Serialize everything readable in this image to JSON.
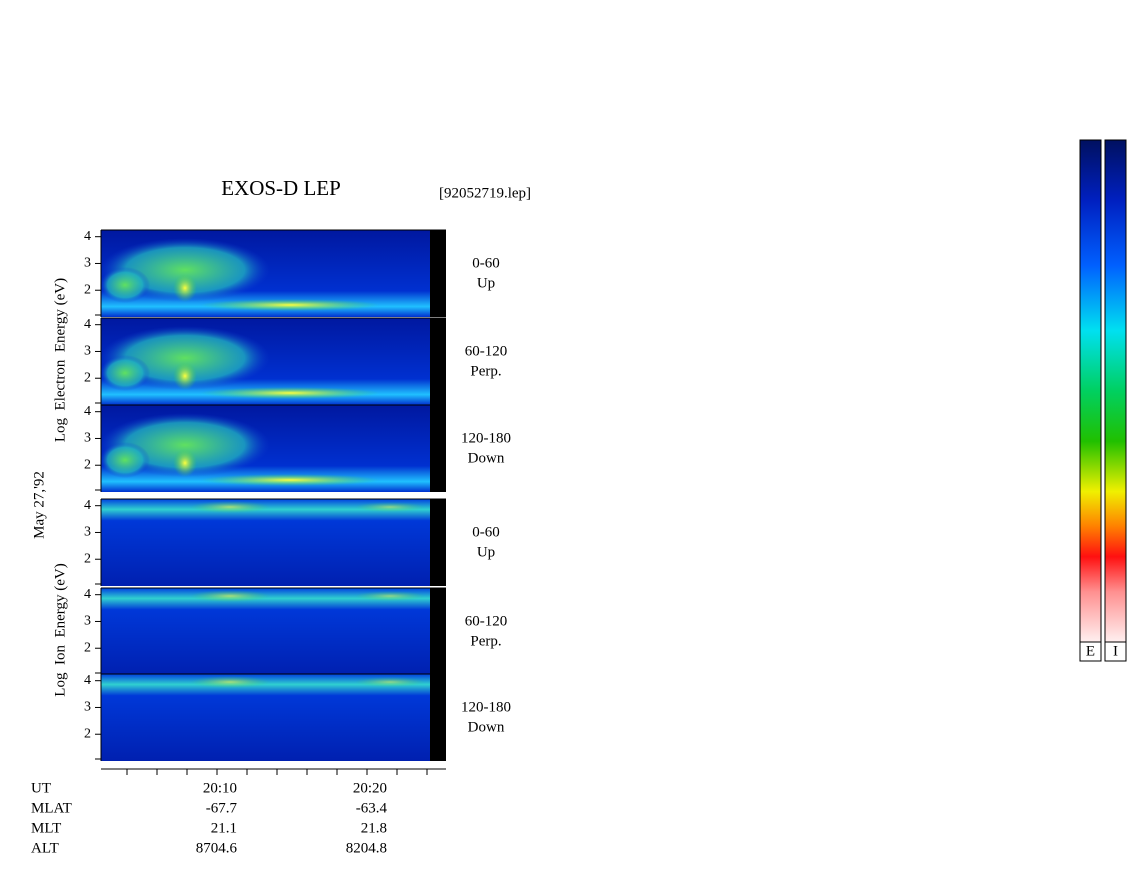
{
  "chart_data": {
    "type": "spectrogram",
    "title": "EXOS-D LEP",
    "subtitle": "[92052719.lep]",
    "date_label": "May 27,'92",
    "ylabels": [
      "Log  Electron  Energy (eV)",
      "Log  Ion  Energy (eV)"
    ],
    "panels": [
      {
        "label": [
          "0-60",
          "Up"
        ],
        "ylim": [
          1,
          4.25
        ],
        "yticks": [
          2,
          3,
          4
        ]
      },
      {
        "label": [
          "60-120",
          "Perp."
        ],
        "ylim": [
          1,
          4.25
        ],
        "yticks": [
          2,
          3,
          4
        ]
      },
      {
        "label": [
          "120-180",
          "Down"
        ],
        "ylim": [
          1,
          4.25
        ],
        "yticks": [
          2,
          3,
          4
        ]
      },
      {
        "label": [
          "0-60",
          "Up"
        ],
        "ylim": [
          1,
          4.25
        ],
        "yticks": [
          2,
          3,
          4
        ]
      },
      {
        "label": [
          "60-120",
          "Perp."
        ],
        "ylim": [
          1,
          4.25
        ],
        "yticks": [
          2,
          3,
          4
        ]
      },
      {
        "label": [
          "120-180",
          "Down"
        ],
        "ylim": [
          1,
          4.25
        ],
        "yticks": [
          2,
          3,
          4
        ]
      }
    ],
    "x_rows": [
      {
        "name": "UT",
        "values": [
          "20:10",
          "20:20"
        ]
      },
      {
        "name": "MLAT",
        "values": [
          -67.7,
          -63.4
        ]
      },
      {
        "name": "MLT",
        "values": [
          21.1,
          21.8
        ]
      },
      {
        "name": "ALT",
        "values": [
          8704.6,
          8204.8
        ]
      }
    ],
    "colorbars": [
      "E",
      "I"
    ]
  }
}
